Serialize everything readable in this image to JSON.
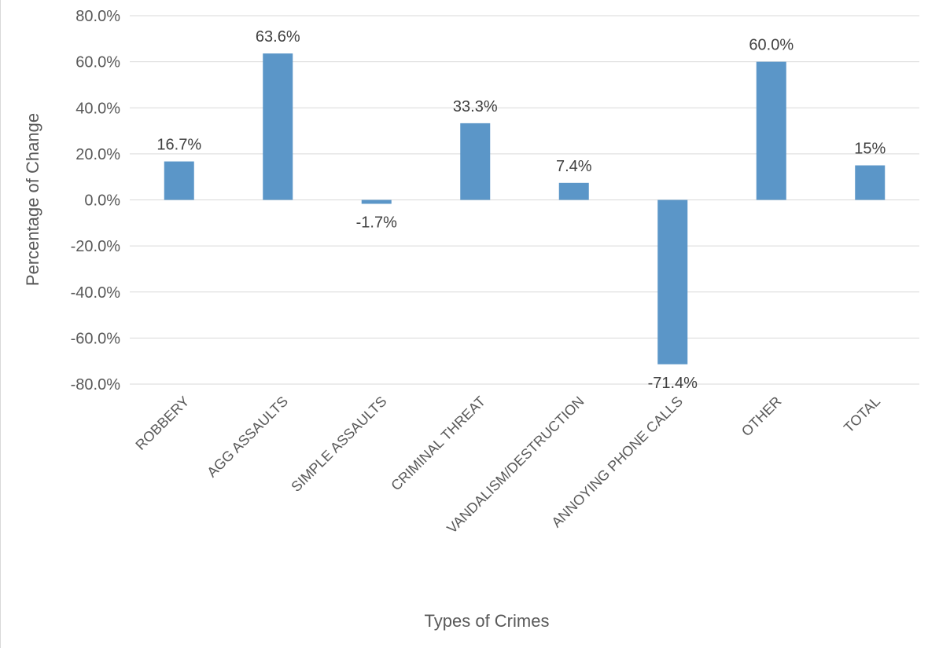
{
  "chart_data": {
    "type": "bar",
    "title": "",
    "xlabel": "Types of Crimes",
    "ylabel": "Percentage of Change",
    "ylim": [
      -80,
      80
    ],
    "ytick_step": 20,
    "ytick_labels": [
      "80.0%",
      "60.0%",
      "40.0%",
      "20.0%",
      "0.0%",
      "-20.0%",
      "-40.0%",
      "-60.0%",
      "-80.0%"
    ],
    "grid": true,
    "legend": "none",
    "categories": [
      "ROBBERY",
      "AGG ASSAULTS",
      "SIMPLE ASSAULTS",
      "CRIMINAL THREAT",
      "VANDALISM/DESTRUCTION",
      "ANNOYING PHONE CALLS",
      "OTHER",
      "TOTAL"
    ],
    "values": [
      16.7,
      63.6,
      -1.7,
      33.3,
      7.4,
      -71.4,
      60.0,
      15
    ],
    "data_labels": [
      "16.7%",
      "63.6%",
      "-1.7%",
      "33.3%",
      "7.4%",
      "-71.4%",
      "60.0%",
      "15%"
    ],
    "bar_color": "#5b96c8",
    "grid_color": "#d9d9d9"
  }
}
